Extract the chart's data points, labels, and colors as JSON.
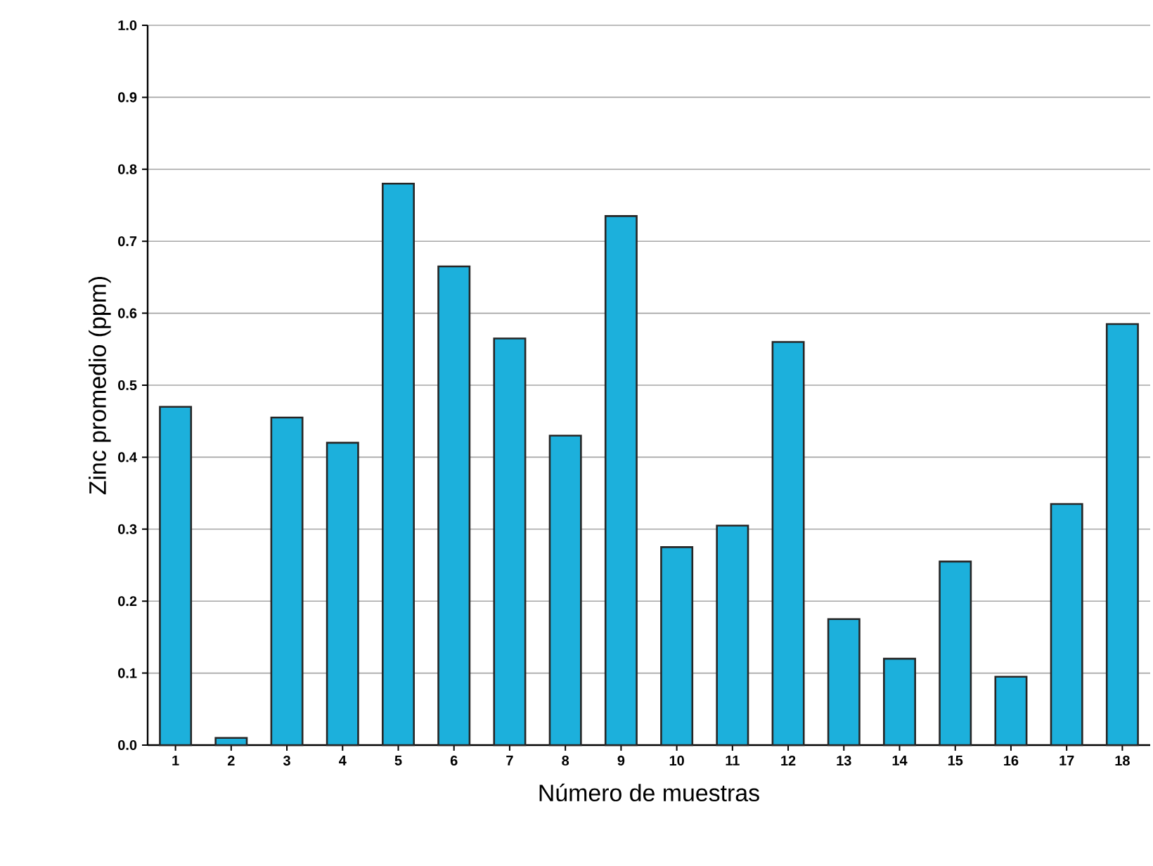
{
  "chart_data": {
    "type": "bar",
    "xlabel": "Número de muestras",
    "ylabel": "Zinc promedio  (ppm)",
    "categories": [
      "1",
      "2",
      "3",
      "4",
      "5",
      "6",
      "7",
      "8",
      "9",
      "10",
      "11",
      "12",
      "13",
      "14",
      "15",
      "16",
      "17",
      "18"
    ],
    "values": [
      0.47,
      0.01,
      0.455,
      0.42,
      0.78,
      0.665,
      0.565,
      0.43,
      0.735,
      0.275,
      0.305,
      0.56,
      0.175,
      0.12,
      0.255,
      0.095,
      0.335,
      0.585
    ],
    "color": "#1cb0dc",
    "ylim": [
      0,
      1.0
    ],
    "yticks": [
      {
        "value": 0,
        "label": "0.0"
      },
      {
        "value": 0.1,
        "label": "0.1"
      },
      {
        "value": 0.2,
        "label": "0.2"
      },
      {
        "value": 0.3,
        "label": "0.3"
      },
      {
        "value": 0.4,
        "label": "0.4"
      },
      {
        "value": 0.5,
        "label": "0.5"
      },
      {
        "value": 0.6,
        "label": "0.6"
      },
      {
        "value": 0.7,
        "label": "0.7"
      },
      {
        "value": 0.8,
        "label": "0.8"
      },
      {
        "value": 0.9,
        "label": "0.9"
      },
      {
        "value": 1.0,
        "label": "1.0"
      }
    ],
    "grid": "y"
  }
}
